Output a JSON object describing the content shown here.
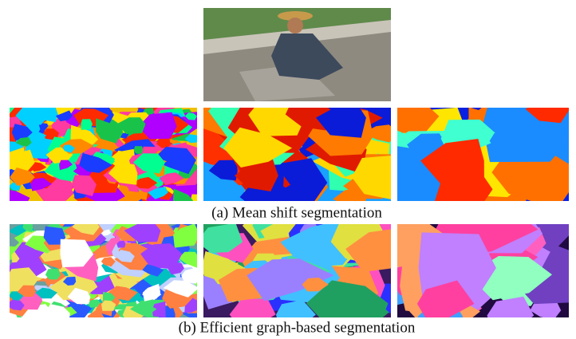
{
  "captions": {
    "a": "(a) Mean shift segmentation",
    "b": "(b) Efficient graph-based segmentation"
  }
}
